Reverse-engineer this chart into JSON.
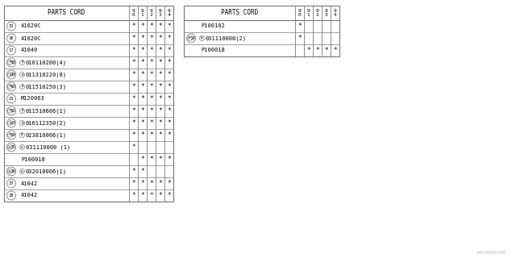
{
  "title": "PARTS CORD",
  "col_headers": [
    "9\n0",
    "9\n1",
    "9\n2",
    "9\n3",
    "9\n4"
  ],
  "left_rows": [
    {
      "ref": "15",
      "prefix": "",
      "part": "41020C",
      "marks": [
        1,
        1,
        1,
        1,
        1
      ],
      "sub": null
    },
    {
      "ref": "16",
      "prefix": "",
      "part": "41020C",
      "marks": [
        1,
        1,
        1,
        1,
        1
      ],
      "sub": null
    },
    {
      "ref": "17",
      "prefix": "",
      "part": "41040",
      "marks": [
        1,
        1,
        1,
        1,
        1
      ],
      "sub": null
    },
    {
      "ref": "18",
      "prefix": "B",
      "part": "010110200(4)",
      "marks": [
        1,
        1,
        1,
        1,
        1
      ],
      "sub": null
    },
    {
      "ref": "19",
      "prefix": "B",
      "part": "011310220(8)",
      "marks": [
        1,
        1,
        1,
        1,
        1
      ],
      "sub": null
    },
    {
      "ref": "20",
      "prefix": "B",
      "part": "011510250(3)",
      "marks": [
        1,
        1,
        1,
        1,
        1
      ],
      "sub": null
    },
    {
      "ref": "21",
      "prefix": "",
      "part": "M120063",
      "marks": [
        1,
        1,
        1,
        1,
        1
      ],
      "sub": null
    },
    {
      "ref": "22",
      "prefix": "B",
      "part": "011510606(1)",
      "marks": [
        1,
        1,
        1,
        1,
        1
      ],
      "sub": null
    },
    {
      "ref": "23",
      "prefix": "B",
      "part": "010112350(2)",
      "marks": [
        1,
        1,
        1,
        1,
        1
      ],
      "sub": null
    },
    {
      "ref": "24",
      "prefix": "N",
      "part": "023810006(1)",
      "marks": [
        1,
        1,
        1,
        1,
        1
      ],
      "sub": null
    },
    {
      "ref": "25",
      "prefix": "W",
      "part": "031110000 (1)",
      "marks": [
        1,
        0,
        0,
        0,
        0
      ],
      "sub": {
        "part": "P100018",
        "marks": [
          0,
          1,
          1,
          1,
          1
        ]
      }
    },
    {
      "ref": "26",
      "prefix": "W",
      "part": "032010006(1)",
      "marks": [
        1,
        1,
        0,
        0,
        0
      ],
      "sub": null
    },
    {
      "ref": "27",
      "prefix": "",
      "part": "41042",
      "marks": [
        1,
        1,
        1,
        1,
        1
      ],
      "sub": null
    },
    {
      "ref": "28",
      "prefix": "",
      "part": "41042",
      "marks": [
        1,
        1,
        1,
        1,
        1
      ],
      "sub": null
    }
  ],
  "right_rows": [
    {
      "ref": "",
      "prefix": "",
      "part": "P100102",
      "marks": [
        1,
        0,
        0,
        0,
        0
      ],
      "sub": null
    },
    {
      "ref": "29",
      "prefix": "W",
      "part": "031110000(2)",
      "marks": [
        1,
        0,
        0,
        0,
        0
      ],
      "sub": {
        "part": "P100018",
        "marks": [
          0,
          1,
          1,
          1,
          1
        ]
      }
    }
  ],
  "watermark": "A410A00100",
  "bg_color": "#ffffff",
  "fg_color": "#000000",
  "line_color": "#777777",
  "star": "*"
}
